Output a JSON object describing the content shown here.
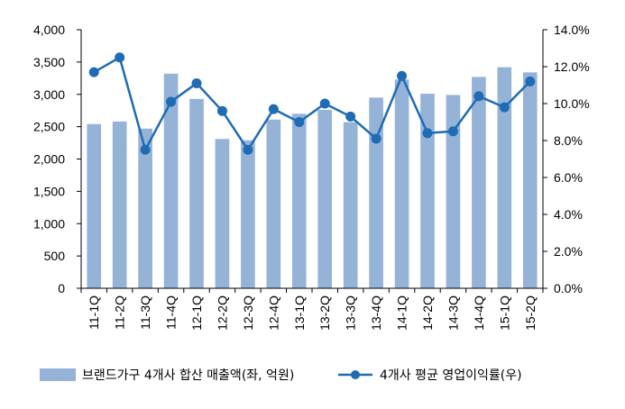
{
  "chart_data": {
    "type": "bar+line",
    "categories": [
      "11-1Q",
      "11-2Q",
      "11-3Q",
      "11-4Q",
      "12-1Q",
      "12-2Q",
      "12-3Q",
      "12-4Q",
      "13-1Q",
      "13-2Q",
      "13-3Q",
      "13-4Q",
      "14-1Q",
      "14-2Q",
      "14-3Q",
      "14-4Q",
      "15-1Q",
      "15-2Q"
    ],
    "series": [
      {
        "name": "브랜드가구 4개사 합산 매출액(좌, 억원)",
        "type": "bar",
        "axis": "left",
        "color": "#95b3d7",
        "values": [
          2540,
          2580,
          2470,
          3320,
          2930,
          2310,
          2290,
          2610,
          2700,
          2760,
          2570,
          2950,
          3230,
          3010,
          2990,
          3270,
          3420,
          3340
        ]
      },
      {
        "name": "4개사 평균 영업이익률(우)",
        "type": "line",
        "axis": "right",
        "color": "#1f6bb4",
        "values": [
          11.7,
          12.5,
          7.5,
          10.1,
          11.1,
          9.6,
          7.5,
          9.7,
          9.0,
          10.0,
          9.3,
          8.1,
          11.5,
          8.4,
          8.5,
          10.4,
          9.8,
          11.2
        ]
      }
    ],
    "y_left": {
      "min": 0,
      "max": 4000,
      "step": 500,
      "ticks": [
        "0",
        "500",
        "1,000",
        "1,500",
        "2,000",
        "2,500",
        "3,000",
        "3,500",
        "4,000"
      ]
    },
    "y_right": {
      "min": 0,
      "max": 14,
      "step": 2,
      "ticks": [
        "0.0%",
        "2.0%",
        "4.0%",
        "6.0%",
        "8.0%",
        "10.0%",
        "12.0%",
        "14.0%"
      ]
    },
    "grid": false,
    "legend_position": "bottom"
  }
}
